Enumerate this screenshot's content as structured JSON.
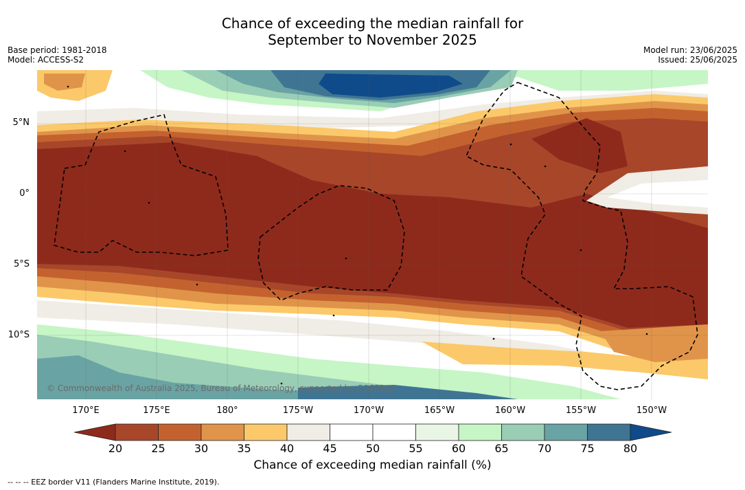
{
  "title": {
    "line1": "Chance of exceeding the median rainfall for",
    "line2": "September to November 2025"
  },
  "meta": {
    "base_period": "Base period: 1981-2018",
    "model": "Model: ACCESS-S2",
    "model_run": "Model run: 23/06/2025",
    "issued": "Issued: 25/06/2025"
  },
  "map": {
    "lat_labels": [
      "5°N",
      "0°",
      "5°S",
      "10°S"
    ],
    "lon_labels": [
      "170°E",
      "175°E",
      "180°",
      "175°W",
      "170°W",
      "165°W",
      "160°W",
      "155°W",
      "150°W"
    ],
    "copyright": "© Commonwealth of Australia 2025, Bureau of Meteorology, supported by COSPPac"
  },
  "colorbar": {
    "ticks": [
      "20",
      "25",
      "30",
      "35",
      "40",
      "45",
      "50",
      "55",
      "60",
      "65",
      "70",
      "75",
      "80"
    ],
    "colors": [
      "#8e2a1c",
      "#a8462a",
      "#c4622f",
      "#e0944a",
      "#fbc96a",
      "#f0ece6",
      "#ffffff",
      "#ffffff",
      "#e9f6e6",
      "#c6f5c6",
      "#99cdb6",
      "#6aa3a3",
      "#3f7593",
      "#0f4b8b"
    ],
    "label": "Chance of exceeding median rainfall (%)"
  },
  "footnote": "--  --  -- EEZ border V11 (Flanders Marine Institute, 2019)."
}
